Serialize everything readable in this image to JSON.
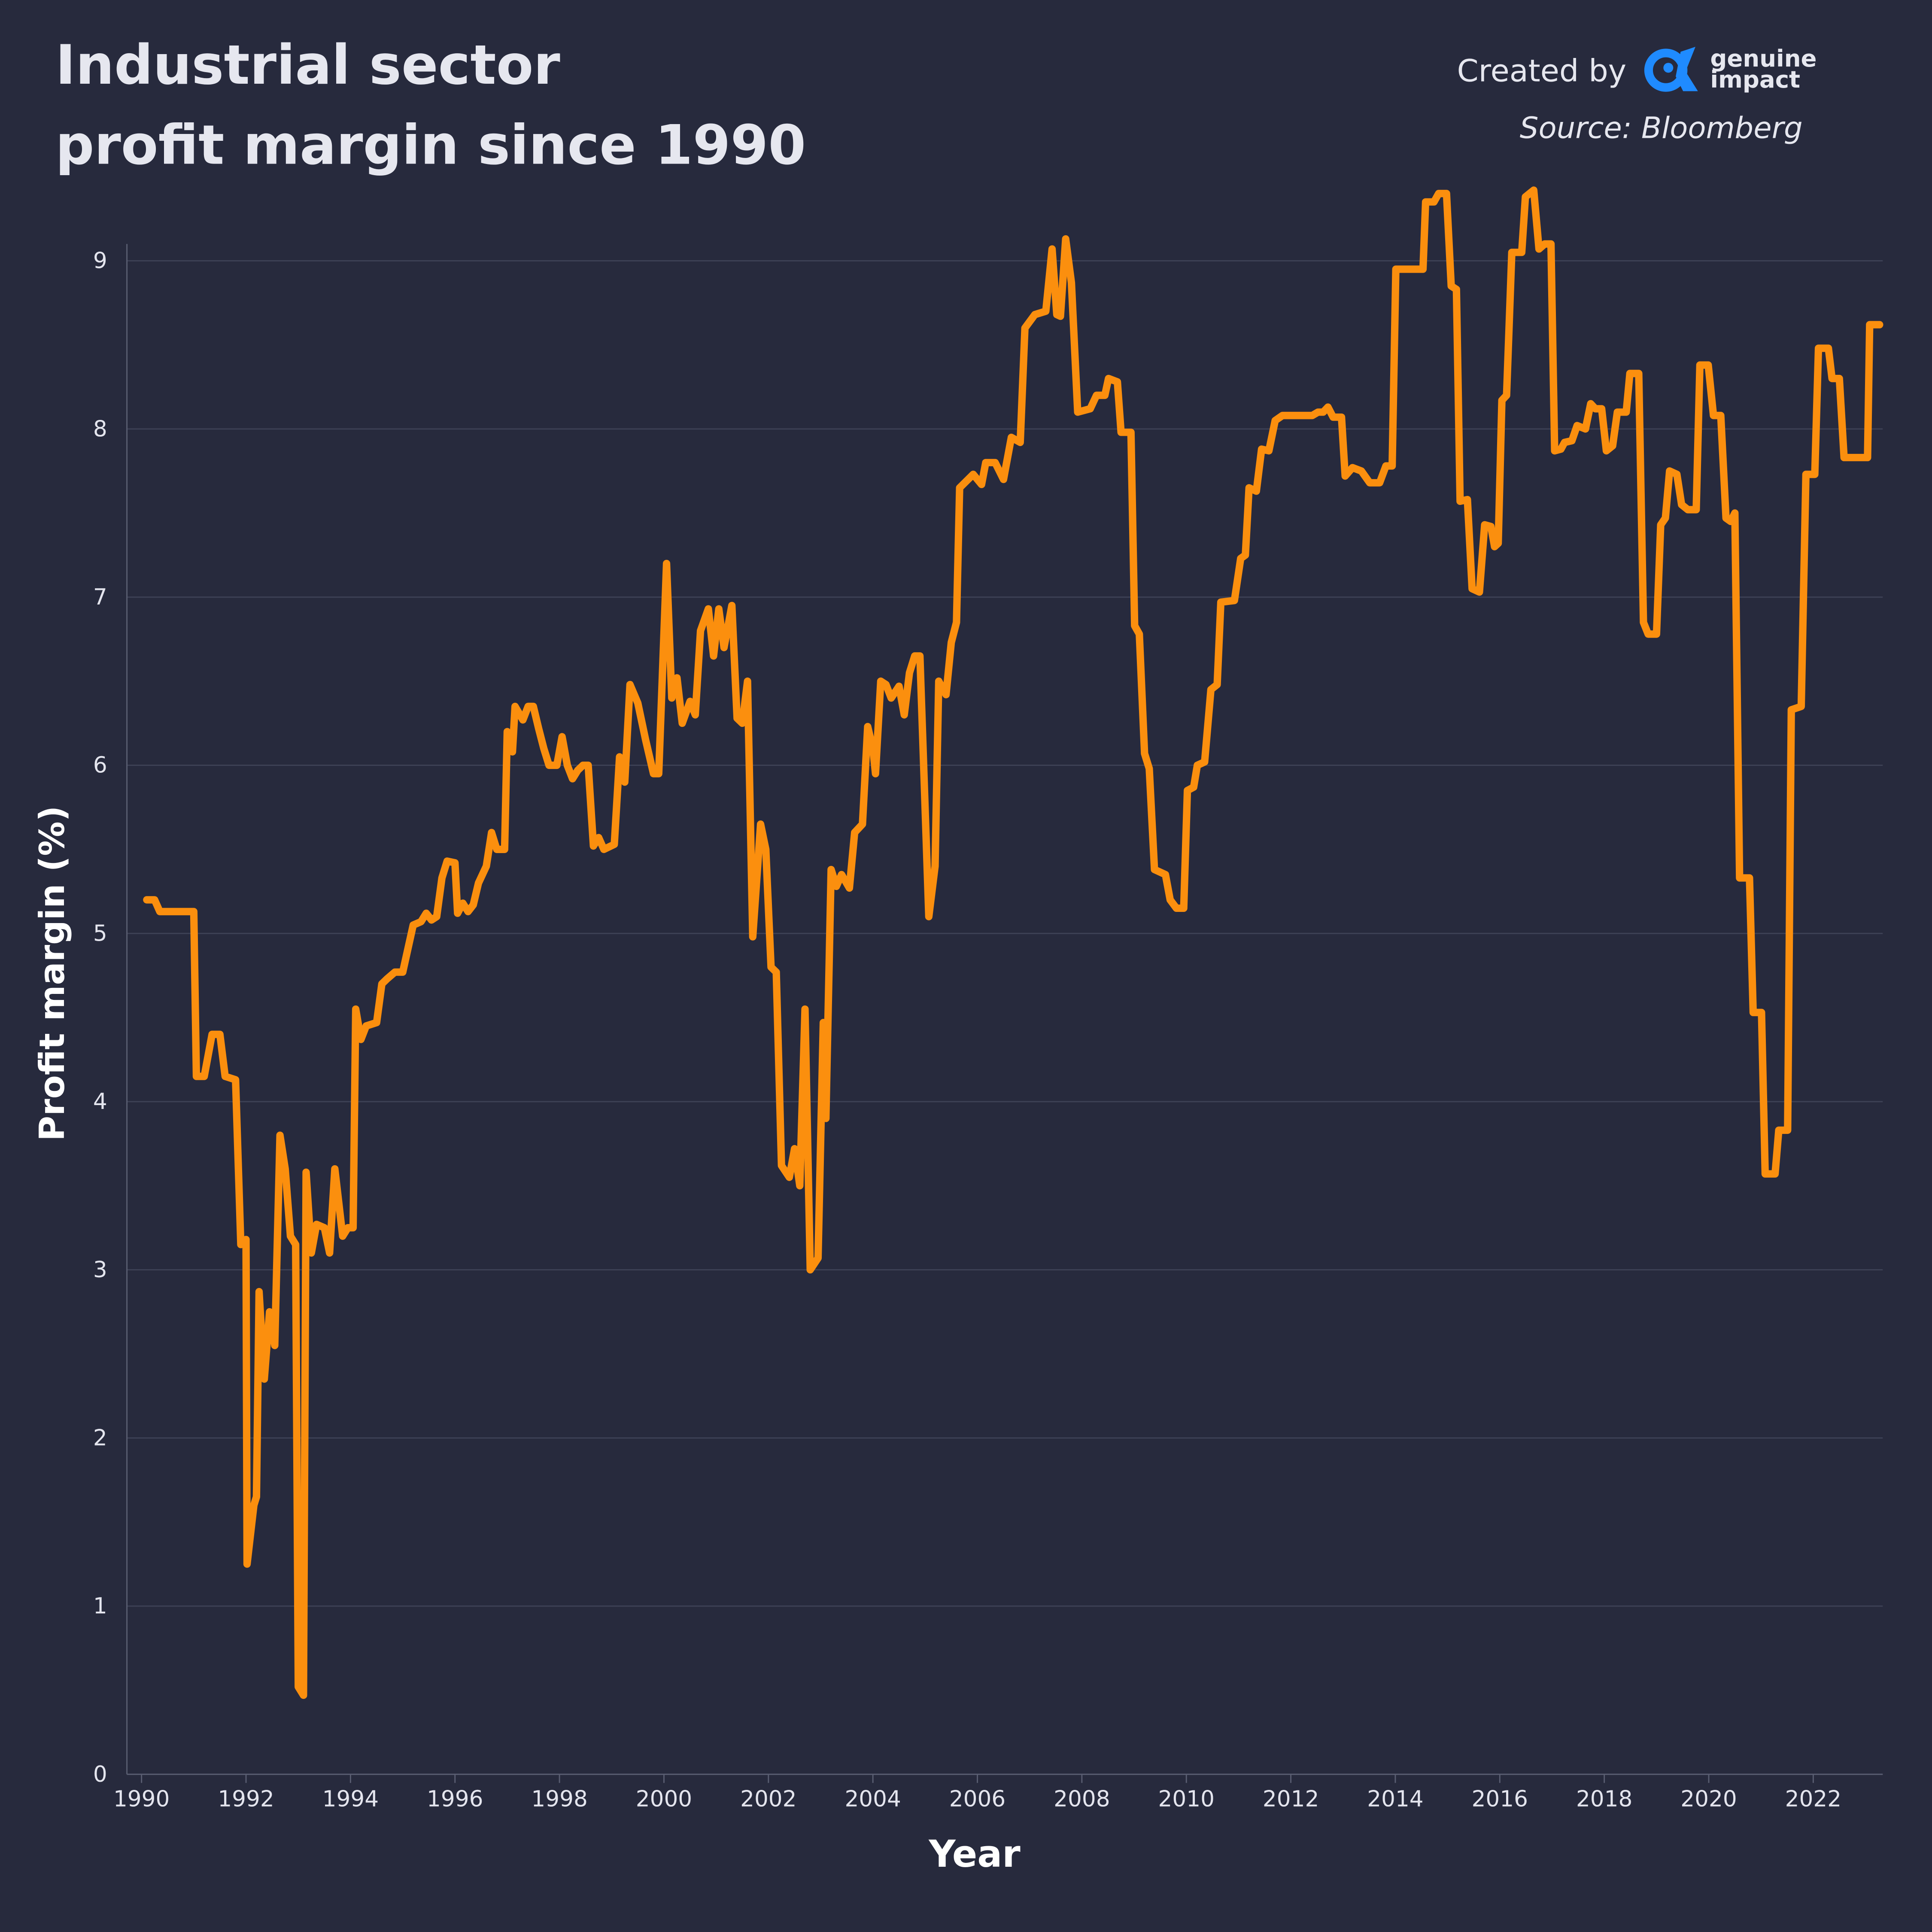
{
  "chart_data": {
    "type": "line",
    "title": [
      "Industrial sector",
      "profit margin since 1990"
    ],
    "credit": "Created by",
    "brand": [
      "genuine",
      "impact"
    ],
    "source": "Source: Bloomberg",
    "xlabel": "Year",
    "ylabel": "Profit margin (%)",
    "color": "#fb8f0e",
    "grid": true,
    "xlim": [
      1989.72,
      2023.33
    ],
    "ylim": [
      0,
      9.1
    ],
    "xticks": [
      1990,
      1992,
      1994,
      1996,
      1998,
      2000,
      2002,
      2004,
      2006,
      2008,
      2010,
      2012,
      2014,
      2016,
      2018,
      2020,
      2022
    ],
    "yticks": [
      0,
      1,
      2,
      3,
      4,
      5,
      6,
      7,
      8,
      9
    ],
    "x": [
      1990.1,
      1990.25,
      1990.35,
      1991.0,
      1991.05,
      1991.2,
      1991.35,
      1991.5,
      1991.6,
      1991.8,
      1991.9,
      1992.0,
      1992.02,
      1992.15,
      1992.2,
      1992.25,
      1992.35,
      1992.45,
      1992.55,
      1992.65,
      1992.75,
      1992.85,
      1992.95,
      1993.0,
      1993.1,
      1993.15,
      1993.25,
      1993.35,
      1993.5,
      1993.6,
      1993.7,
      1993.85,
      1993.95,
      1994.05,
      1994.1,
      1994.2,
      1994.3,
      1994.5,
      1994.6,
      1994.7,
      1994.85,
      1995.0,
      1995.2,
      1995.35,
      1995.45,
      1995.55,
      1995.65,
      1995.75,
      1995.85,
      1996.0,
      1996.05,
      1996.15,
      1996.25,
      1996.35,
      1996.45,
      1996.6,
      1996.7,
      1996.8,
      1996.95,
      1997.0,
      1997.1,
      1997.15,
      1997.3,
      1997.4,
      1997.5,
      1997.6,
      1997.7,
      1997.8,
      1997.95,
      1998.05,
      1998.15,
      1998.25,
      1998.35,
      1998.45,
      1998.55,
      1998.65,
      1998.75,
      1998.85,
      1999.05,
      1999.15,
      1999.25,
      1999.35,
      1999.5,
      1999.65,
      1999.8,
      1999.9,
      2000.05,
      2000.15,
      2000.25,
      2000.35,
      2000.5,
      2000.6,
      2000.7,
      2000.85,
      2000.95,
      2001.05,
      2001.15,
      2001.3,
      2001.4,
      2001.5,
      2001.6,
      2001.7,
      2001.85,
      2001.95,
      2002.05,
      2002.15,
      2002.25,
      2002.4,
      2002.5,
      2002.6,
      2002.7,
      2002.8,
      2002.95,
      2003.05,
      2003.1,
      2003.2,
      2003.3,
      2003.4,
      2003.55,
      2003.65,
      2003.8,
      2003.9,
      2004.0,
      2004.05,
      2004.15,
      2004.25,
      2004.35,
      2004.5,
      2004.6,
      2004.7,
      2004.8,
      2004.9,
      2005.07,
      2005.19,
      2005.26,
      2005.4,
      2005.5,
      2005.6,
      2005.66,
      2005.92,
      2006.08,
      2006.16,
      2006.34,
      2006.5,
      2006.65,
      2006.82,
      2006.91,
      2007.1,
      2007.31,
      2007.43,
      2007.52,
      2007.59,
      2007.69,
      2007.8,
      2007.92,
      2008.16,
      2008.28,
      2008.44,
      2008.51,
      2008.68,
      2008.75,
      2008.94,
      2009.01,
      2009.1,
      2009.2,
      2009.29,
      2009.39,
      2009.6,
      2009.69,
      2009.81,
      2009.95,
      2010.02,
      2010.14,
      2010.21,
      2010.35,
      2010.47,
      2010.59,
      2010.66,
      2010.92,
      2011.04,
      2011.13,
      2011.2,
      2011.34,
      2011.44,
      2011.58,
      2011.7,
      2011.84,
      2012.41,
      2012.52,
      2012.62,
      2012.71,
      2012.81,
      2012.97,
      2013.04,
      2013.18,
      2013.35,
      2013.51,
      2013.7,
      2013.82,
      2013.94,
      2014.01,
      2014.53,
      2014.58,
      2014.74,
      2014.83,
      2014.98,
      2015.07,
      2015.17,
      2015.24,
      2015.38,
      2015.47,
      2015.61,
      2015.71,
      2015.83,
      2015.9,
      2015.97,
      2016.04,
      2016.13,
      2016.23,
      2016.42,
      2016.49,
      2016.65,
      2016.75,
      2016.86,
      2016.98,
      2017.05,
      2017.17,
      2017.24,
      2017.38,
      2017.48,
      2017.64,
      2017.74,
      2017.83,
      2017.95,
      2018.04,
      2018.16,
      2018.25,
      2018.42,
      2018.49,
      2018.66,
      2018.75,
      2018.84,
      2019.0,
      2019.08,
      2019.17,
      2019.25,
      2019.39,
      2019.48,
      2019.6,
      2019.76,
      2019.83,
      2019.99,
      2020.09,
      2020.23,
      2020.33,
      2020.42,
      2020.5,
      2020.59,
      2020.78,
      2020.85,
      2021.01,
      2021.08,
      2021.27,
      2021.34,
      2021.51,
      2021.58,
      2021.77,
      2021.86,
      2022.03,
      2022.1,
      2022.29,
      2022.36,
      2022.5,
      2022.59,
      2023.04,
      2023.08,
      2023.27
    ],
    "values": [
      5.2,
      5.2,
      5.13,
      5.13,
      4.15,
      4.15,
      4.4,
      4.4,
      4.15,
      4.13,
      3.15,
      3.18,
      1.25,
      1.6,
      1.65,
      2.87,
      2.35,
      2.75,
      2.55,
      3.8,
      3.6,
      3.2,
      3.15,
      0.52,
      0.47,
      3.58,
      3.1,
      3.27,
      3.25,
      3.1,
      3.6,
      3.2,
      3.25,
      3.25,
      4.55,
      4.37,
      4.45,
      4.47,
      4.7,
      4.73,
      4.77,
      4.77,
      5.05,
      5.07,
      5.12,
      5.08,
      5.1,
      5.33,
      5.43,
      5.42,
      5.12,
      5.18,
      5.13,
      5.17,
      5.3,
      5.4,
      5.6,
      5.5,
      5.5,
      6.2,
      6.08,
      6.35,
      6.27,
      6.35,
      6.35,
      6.22,
      6.1,
      6.0,
      6.0,
      6.17,
      6.0,
      5.92,
      5.97,
      6.0,
      6.0,
      5.52,
      5.57,
      5.5,
      5.53,
      6.05,
      5.9,
      6.48,
      6.37,
      6.15,
      5.95,
      5.95,
      7.2,
      6.4,
      6.52,
      6.25,
      6.38,
      6.3,
      6.8,
      6.93,
      6.65,
      6.93,
      6.7,
      6.95,
      6.28,
      6.25,
      6.5,
      4.98,
      5.65,
      5.5,
      4.8,
      4.77,
      3.62,
      3.55,
      3.72,
      3.5,
      4.55,
      3.0,
      3.07,
      4.47,
      3.9,
      5.38,
      5.28,
      5.35,
      5.27,
      5.6,
      5.65,
      6.23,
      6.1,
      5.95,
      6.5,
      6.48,
      6.4,
      6.47,
      6.3,
      6.55,
      6.65,
      6.65,
      5.1,
      5.4,
      6.5,
      6.42,
      6.73,
      6.85,
      7.65,
      7.73,
      7.67,
      7.8,
      7.8,
      7.7,
      7.95,
      7.92,
      8.6,
      8.68,
      8.7,
      9.07,
      8.68,
      8.67,
      9.13,
      8.87,
      8.1,
      8.12,
      8.2,
      8.2,
      8.3,
      8.28,
      7.98,
      7.98,
      6.83,
      6.78,
      6.07,
      5.98,
      5.38,
      5.35,
      5.2,
      5.15,
      5.15,
      5.85,
      5.87,
      6.0,
      6.02,
      6.45,
      6.48,
      6.97,
      6.98,
      7.23,
      7.25,
      7.65,
      7.63,
      7.88,
      7.87,
      8.05,
      8.08,
      8.08,
      8.1,
      8.1,
      8.13,
      8.07,
      8.07,
      7.72,
      7.77,
      7.75,
      7.68,
      7.68,
      7.78,
      7.78,
      8.95,
      8.95,
      9.35,
      9.35,
      9.4,
      9.4,
      8.85,
      8.83,
      7.57,
      7.58,
      7.05,
      7.03,
      7.43,
      7.42,
      7.3,
      7.32,
      8.17,
      8.2,
      9.05,
      9.05,
      9.38,
      9.42,
      9.07,
      9.1,
      9.1,
      7.87,
      7.88,
      7.92,
      7.93,
      8.02,
      8.0,
      8.15,
      8.12,
      8.12,
      7.87,
      7.9,
      8.1,
      8.1,
      8.33,
      8.33,
      6.85,
      6.78,
      6.78,
      7.43,
      7.47,
      7.75,
      7.73,
      7.55,
      7.52,
      7.52,
      8.38,
      8.38,
      8.08,
      8.08,
      7.47,
      7.45,
      7.5,
      5.33,
      5.33,
      4.53,
      4.53,
      3.57,
      3.57,
      3.83,
      3.83,
      6.33,
      6.35,
      7.73,
      7.73,
      8.48,
      8.48,
      8.3,
      8.3,
      7.83,
      7.83,
      8.62,
      8.62
    ]
  }
}
